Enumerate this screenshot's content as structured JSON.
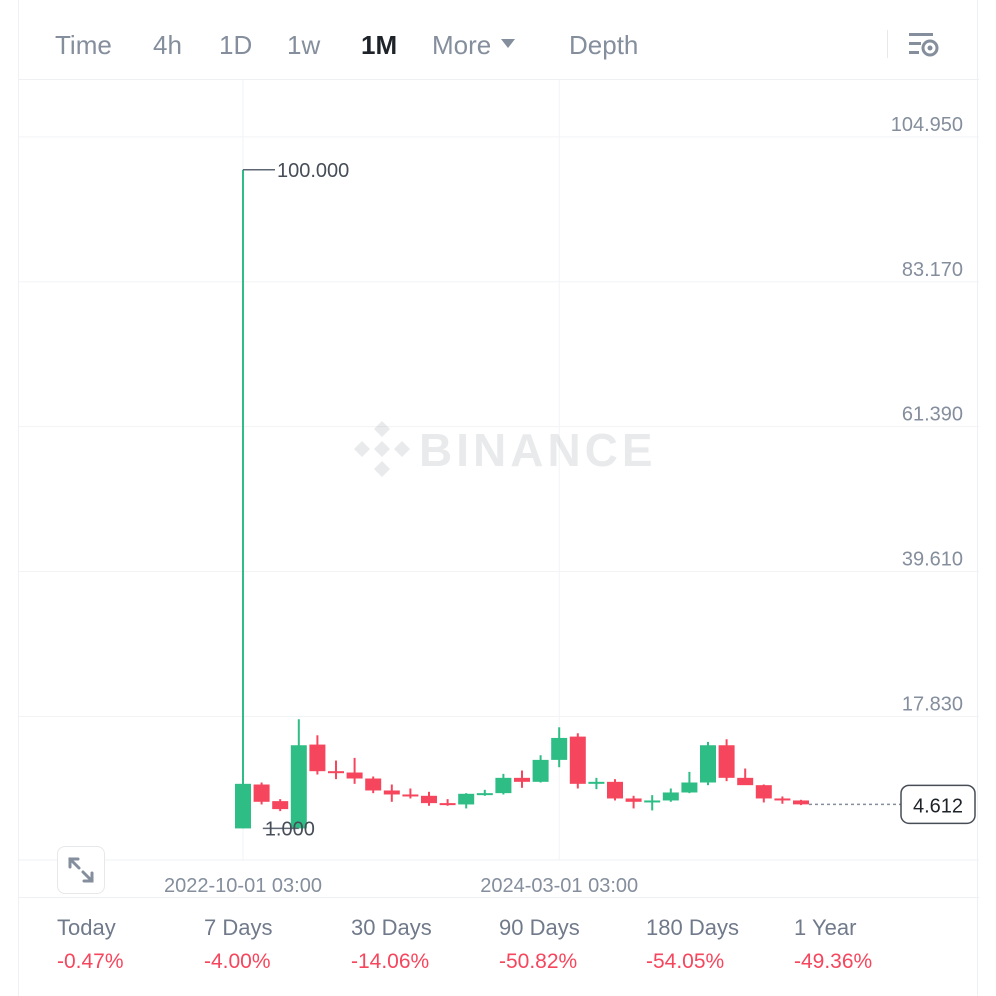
{
  "toolbar": {
    "timeframes": [
      {
        "label": "Time",
        "active": false
      },
      {
        "label": "4h",
        "active": false
      },
      {
        "label": "1D",
        "active": false
      },
      {
        "label": "1w",
        "active": false
      },
      {
        "label": "1M",
        "active": true
      },
      {
        "label": "More",
        "active": false
      }
    ],
    "depth_label": "Depth",
    "settings_icon": "chart-settings-icon"
  },
  "chart": {
    "watermark": "BINANCE",
    "high_marker": "100.000",
    "low_marker": "1.000",
    "last_price": "4.612",
    "expand_icon": "expand-icon"
  },
  "chart_data": {
    "type": "candlestick",
    "interval": "1M",
    "y_ticks": [
      "104.950",
      "83.170",
      "61.390",
      "39.610",
      "17.830"
    ],
    "y_tick_values": [
      104.95,
      83.17,
      61.39,
      39.61,
      17.83
    ],
    "x_ticks": [
      "2022-10-01 03:00",
      "2024-03-01 03:00"
    ],
    "ylim": [
      -3.75,
      113.5
    ],
    "last_price": 4.612,
    "up_color": "#2ebd85",
    "down_color": "#f6465d",
    "candles": [
      {
        "o": 1.0,
        "h": 100.0,
        "l": 1.0,
        "c": 7.7
      },
      {
        "o": 7.6,
        "h": 7.9,
        "l": 4.6,
        "c": 5.0
      },
      {
        "o": 5.1,
        "h": 5.4,
        "l": 3.6,
        "c": 3.9
      },
      {
        "o": 1.0,
        "h": 17.4,
        "l": 1.0,
        "c": 13.5
      },
      {
        "o": 13.6,
        "h": 15.0,
        "l": 9.1,
        "c": 9.6
      },
      {
        "o": 9.6,
        "h": 11.2,
        "l": 8.4,
        "c": 9.4
      },
      {
        "o": 9.4,
        "h": 11.6,
        "l": 7.7,
        "c": 8.5
      },
      {
        "o": 8.5,
        "h": 8.8,
        "l": 6.3,
        "c": 6.7
      },
      {
        "o": 6.7,
        "h": 7.6,
        "l": 5.0,
        "c": 6.1
      },
      {
        "o": 6.1,
        "h": 7.0,
        "l": 5.5,
        "c": 5.9
      },
      {
        "o": 5.9,
        "h": 6.5,
        "l": 4.4,
        "c": 4.8
      },
      {
        "o": 4.8,
        "h": 5.4,
        "l": 4.4,
        "c": 4.6
      },
      {
        "o": 4.6,
        "h": 6.3,
        "l": 4.0,
        "c": 6.2
      },
      {
        "o": 6.2,
        "h": 6.8,
        "l": 5.9,
        "c": 6.3
      },
      {
        "o": 6.3,
        "h": 9.2,
        "l": 6.1,
        "c": 8.6
      },
      {
        "o": 8.6,
        "h": 9.7,
        "l": 7.1,
        "c": 8.0
      },
      {
        "o": 8.0,
        "h": 12.0,
        "l": 7.9,
        "c": 11.3
      },
      {
        "o": 11.3,
        "h": 16.2,
        "l": 10.2,
        "c": 14.6
      },
      {
        "o": 14.8,
        "h": 15.3,
        "l": 7.0,
        "c": 7.7
      },
      {
        "o": 7.7,
        "h": 8.6,
        "l": 6.9,
        "c": 8.0
      },
      {
        "o": 8.0,
        "h": 8.4,
        "l": 5.2,
        "c": 5.5
      },
      {
        "o": 5.5,
        "h": 5.9,
        "l": 4.0,
        "c": 5.0
      },
      {
        "o": 5.0,
        "h": 6.0,
        "l": 3.7,
        "c": 5.2
      },
      {
        "o": 5.2,
        "h": 7.0,
        "l": 5.0,
        "c": 6.4
      },
      {
        "o": 6.4,
        "h": 9.5,
        "l": 6.3,
        "c": 7.9
      },
      {
        "o": 7.9,
        "h": 14.0,
        "l": 7.5,
        "c": 13.5
      },
      {
        "o": 13.5,
        "h": 14.4,
        "l": 8.1,
        "c": 8.6
      },
      {
        "o": 8.6,
        "h": 10.0,
        "l": 7.7,
        "c": 7.5
      },
      {
        "o": 7.5,
        "h": 7.6,
        "l": 4.9,
        "c": 5.5
      },
      {
        "o": 5.5,
        "h": 5.8,
        "l": 4.7,
        "c": 5.2
      },
      {
        "o": 5.2,
        "h": 5.3,
        "l": 4.5,
        "c": 4.612
      }
    ]
  },
  "stats": [
    {
      "label": "Today",
      "value": "-0.47%"
    },
    {
      "label": "7 Days",
      "value": "-4.00%"
    },
    {
      "label": "30 Days",
      "value": "-14.06%"
    },
    {
      "label": "90 Days",
      "value": "-50.82%"
    },
    {
      "label": "180 Days",
      "value": "-54.05%"
    },
    {
      "label": "1 Year",
      "value": "-49.36%"
    }
  ]
}
